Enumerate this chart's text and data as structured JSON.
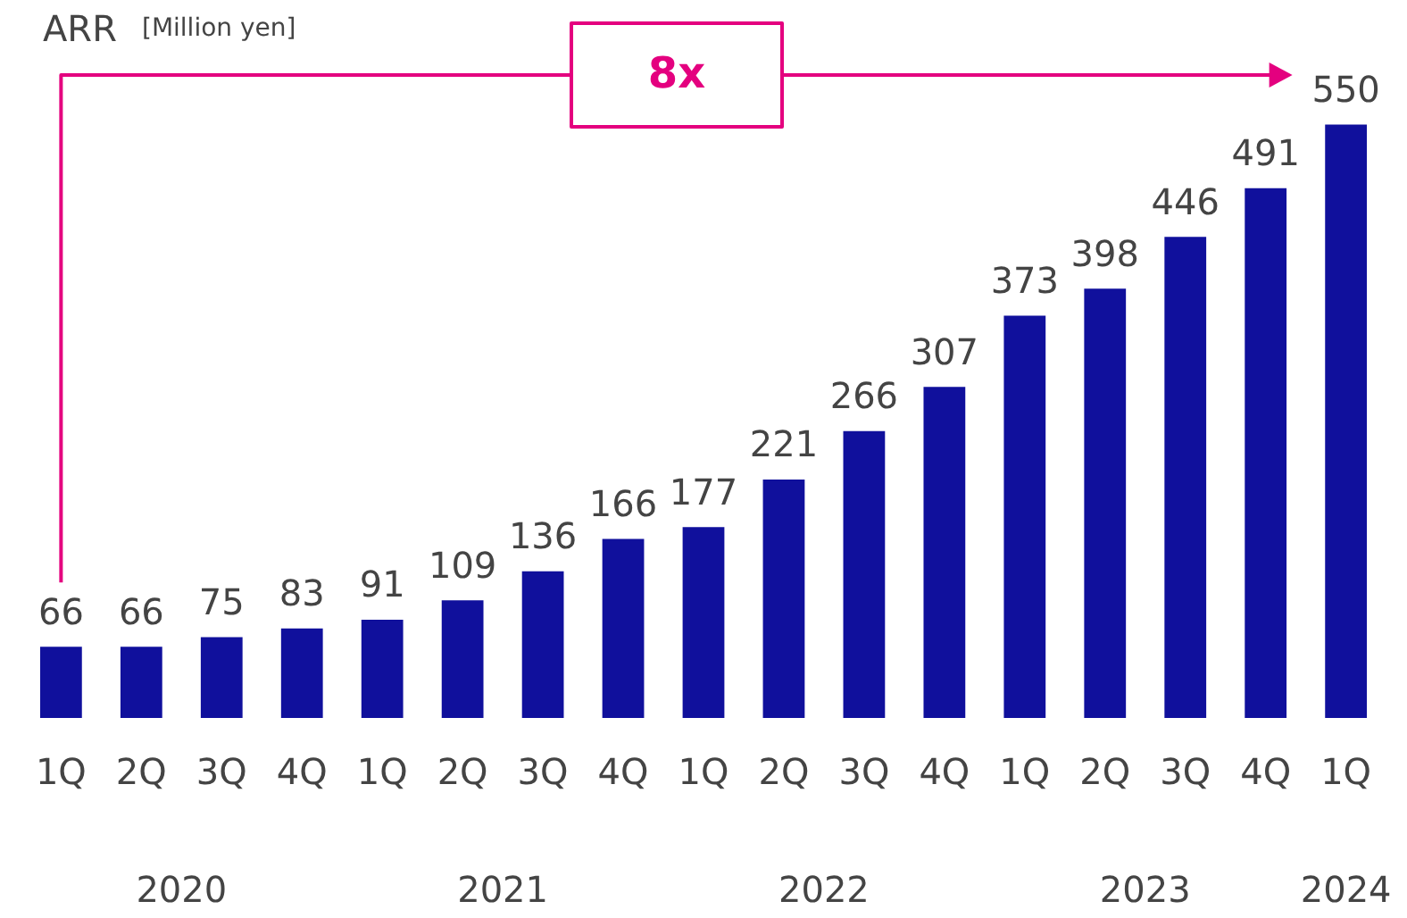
{
  "chart_data": {
    "type": "bar",
    "title": "ARR",
    "subtitle": "[Million yen]",
    "categories": [
      "1Q",
      "2Q",
      "3Q",
      "4Q",
      "1Q",
      "2Q",
      "3Q",
      "4Q",
      "1Q",
      "2Q",
      "3Q",
      "4Q",
      "1Q",
      "2Q",
      "3Q",
      "4Q",
      "1Q"
    ],
    "values": [
      66,
      66,
      75,
      83,
      91,
      109,
      136,
      166,
      177,
      221,
      266,
      307,
      373,
      398,
      446,
      491,
      550
    ],
    "color": "#10109c",
    "data_labels": true,
    "grid": false,
    "legend": false,
    "annotations": [
      "8x",
      "2020",
      "2021",
      "2022",
      "2023",
      "2024"
    ]
  }
}
